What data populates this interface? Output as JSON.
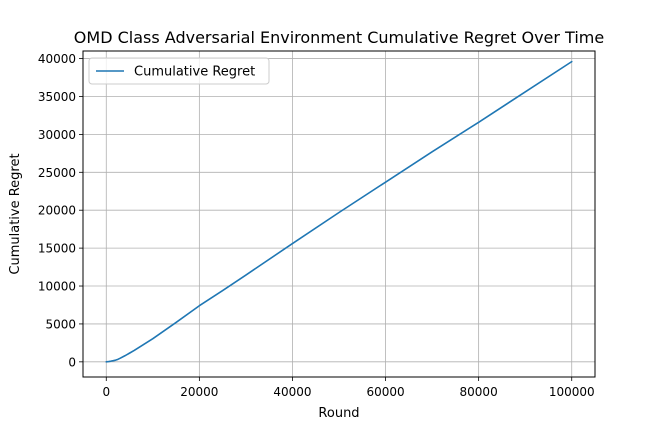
{
  "chart_data": {
    "type": "line",
    "title": "OMD Class Adversarial Environment Cumulative Regret Over Time",
    "xlabel": "Round",
    "ylabel": "Cumulative Regret",
    "xlim": [
      -5000,
      105000
    ],
    "ylim": [
      -2000,
      41000
    ],
    "x_ticks": [
      0,
      20000,
      40000,
      60000,
      80000,
      100000
    ],
    "y_ticks": [
      0,
      5000,
      10000,
      15000,
      20000,
      25000,
      30000,
      35000,
      40000
    ],
    "grid": true,
    "legend_position": "top-left",
    "series": [
      {
        "name": "Cumulative Regret",
        "color": "#1f77b4",
        "x": [
          0,
          500,
          1000,
          1500,
          2000,
          2500,
          3000,
          4000,
          5000,
          6000,
          8000,
          10000,
          15000,
          20000,
          25000,
          30000,
          40000,
          50000,
          60000,
          70000,
          80000,
          90000,
          100000
        ],
        "y": [
          0,
          40,
          90,
          150,
          220,
          330,
          480,
          800,
          1150,
          1500,
          2280,
          3050,
          5200,
          7400,
          9400,
          11450,
          15600,
          19700,
          23700,
          27700,
          31600,
          35600,
          39600
        ]
      }
    ]
  }
}
